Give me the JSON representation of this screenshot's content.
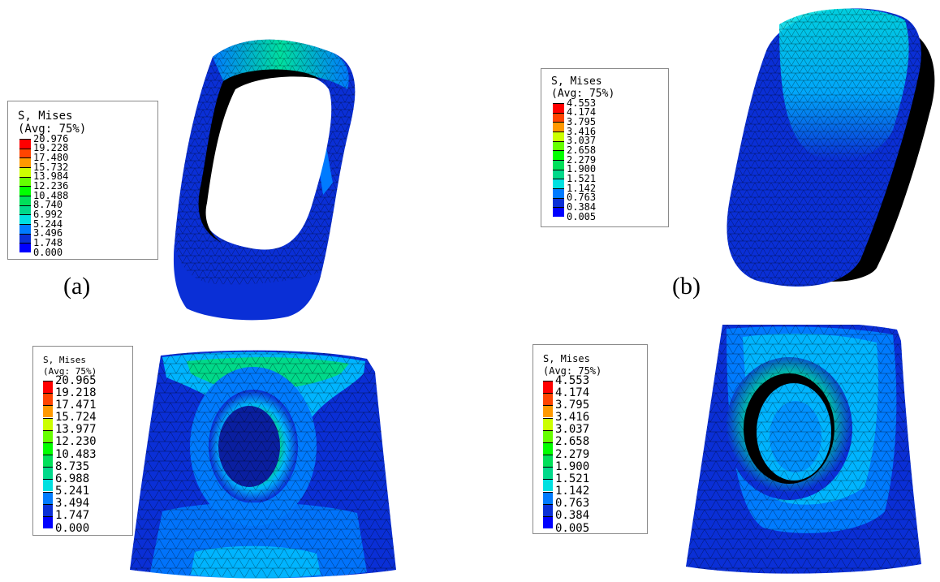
{
  "figure": {
    "colors": [
      "#0000ff",
      "#0a2fd6",
      "#007bff",
      "#00b4ff",
      "#00e0e0",
      "#00d98a",
      "#00e05a",
      "#00ff00",
      "#66ff00",
      "#ccff00",
      "#ffdd00",
      "#ff9900",
      "#ff4400",
      "#ff0000"
    ],
    "panels": [
      {
        "id": "a-top",
        "legend_title": "S, Mises",
        "legend_subtitle": "(Avg: 75%)",
        "values": [
          "20.976",
          "19.228",
          "17.480",
          "15.732",
          "13.984",
          "12.236",
          "10.488",
          "8.740",
          "6.992",
          "5.244",
          "3.496",
          "1.748",
          "0.000"
        ],
        "caption": "(a)"
      },
      {
        "id": "b-top",
        "legend_title": "S, Mises",
        "legend_subtitle": "(Avg: 75%)",
        "values": [
          "4.553",
          "4.174",
          "3.795",
          "3.416",
          "3.037",
          "2.658",
          "2.279",
          "1.900",
          "1.521",
          "1.142",
          "0.763",
          "0.384",
          "0.005"
        ],
        "caption": "(b)"
      },
      {
        "id": "a-bottom",
        "legend_title": "S, Mises",
        "legend_subtitle": "(Avg: 75%)",
        "values": [
          "20.965",
          "19.218",
          "17.471",
          "15.724",
          "13.977",
          "12.230",
          "10.483",
          "8.735",
          "6.988",
          "5.241",
          "3.494",
          "1.747",
          "0.000"
        ]
      },
      {
        "id": "b-bottom",
        "legend_title": "S, Mises",
        "legend_subtitle": "(Avg: 75%)",
        "values": [
          "4.553",
          "4.174",
          "3.795",
          "3.416",
          "3.037",
          "2.658",
          "2.279",
          "1.900",
          "1.521",
          "1.142",
          "0.763",
          "0.384",
          "0.005"
        ]
      }
    ]
  }
}
